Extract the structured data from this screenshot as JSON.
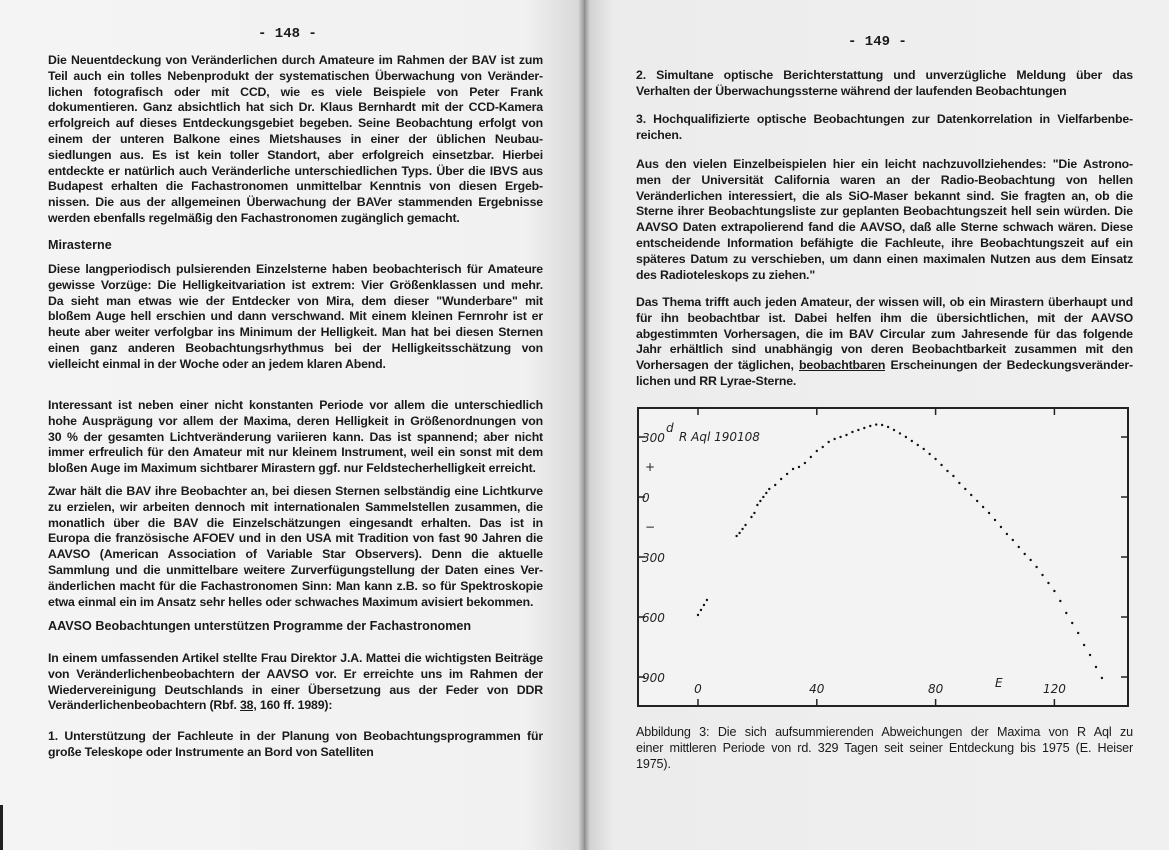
{
  "left_page": {
    "page_number": "- 148 -",
    "paragraphs": [
      [
        "Die Neuentdeckung von Veränderlichen durch Amateure im Rahmen der BAV ist zum",
        "Teil auch ein tolles Nebenprodukt der systematischen Überwachung von Veränder-",
        "lichen fotografisch oder mit CCD, wie es viele Beispiele von Peter Frank",
        "dokumentieren. Ganz absichtlich hat sich Dr. Klaus Bernhardt mit der CCD-Kamera",
        "erfolgreich auf dieses Entdeckungsgebiet begeben. Seine Beobachtung erfolgt von",
        "einem der unteren Balkone eines Mietshauses in einer der üblichen Neubau-",
        "siedlungen aus. Es ist kein toller Standort, aber erfolgreich einsetzbar. Hierbei",
        "entdeckte er natürlich auch Veränderliche unterschiedlichen Typs. Über die IBVS aus",
        "Budapest erhalten die Fachastronomen unmittelbar Kenntnis von diesen Ergeb-",
        "nissen. Die aus der allgemeinen Überwachung der BAVer stammenden Ergebnisse",
        "werden ebenfalls regelmäßig den Fachastronomen zugänglich gemacht."
      ],
      [
        "Diese langperiodisch pulsierenden Einzelsterne haben beobachterisch für Amateure",
        "gewisse Vorzüge: Die Helligkeitvariation ist extrem: Vier Größenklassen und mehr.",
        "Da sieht man etwas wie der Entdecker von Mira, dem dieser \"Wunderbare\" mit",
        "bloßem Auge hell erschien und dann verschwand. Mit einem kleinen Fernrohr ist er",
        "heute aber weiter verfolgbar ins Minimum der Helligkeit. Man hat bei diesen Sternen",
        "einen ganz anderen Beobachtungsrhythmus bei der Helligkeitsschätzung von",
        "vielleicht einmal in der Woche oder an jedem klaren Abend."
      ],
      [
        "Interessant ist neben einer nicht konstanten Periode vor allem die unterschiedlich",
        "hohe Ausprägung vor allem der Maxima, deren Helligkeit in Größenordnungen von",
        "30 % der gesamten Lichtveränderung variieren kann. Das ist spannend; aber nicht",
        "immer erfreulich für den Amateur mit nur kleinem Instrument, weil ein sonst mit dem",
        "bloßen Auge im Maximum sichtbarer Mirastern ggf. nur Feldstecherhelligkeit erreicht."
      ],
      [
        "Zwar hält die BAV ihre Beobachter an, bei diesen Sternen selbständig eine Lichtkurve",
        "zu erzielen, wir arbeiten dennoch mit internationalen Sammelstellen zusammen, die",
        "monatlich über die BAV die Einzelschätzungen eingesandt erhalten. Das ist in",
        "Europa die französische AFOEV und in den USA mit Tradition von fast 90 Jahren die",
        "AAVSO (American Association of Variable Star Observers). Denn die aktuelle",
        "Sammlung und die unmittelbare weitere Zurverfügungstellung der Daten eines Ver-",
        "änderlichen macht für die Fachastronomen Sinn: Man kann z.B. so für Spektroskopie",
        "etwa einmal ein im Ansatz sehr helles oder schwaches Maximum avisiert bekommen."
      ],
      [
        "In einem umfassenden Artikel stellte Frau Direktor J.A. Mattei die wichtigsten Beiträge",
        "von Veränderlichenbeobachtern der AAVSO vor. Er erreichte uns im Rahmen der",
        "Wiedervereinigung Deutschlands in einer Übersetzung aus der Feder von DDR",
        "Veränderlichenbeobachtern (Rbf. 38, 160 ff. 1989):"
      ],
      [
        "1. Unterstützung der Fachleute in der Planung von Beobachtungsprogrammen für",
        "große Teleskope oder Instrumente an Bord von Satelliten"
      ]
    ],
    "heading_mirasterne": "Mirasterne",
    "heading_aavso": "AAVSO Beobachtungen unterstützen Programme der Fachastronomen"
  },
  "right_page": {
    "page_number": "- 149 -",
    "paragraphs": [
      [
        "2. Simultane optische Berichterstattung und unverzügliche Meldung über das",
        "Verhalten der Überwachungssterne während der laufenden Beobachtungen"
      ],
      [
        "3. Hochqualifizierte optische Beobachtungen zur Datenkorrelation in Vielfarbenbe-",
        "reichen."
      ],
      [
        "Aus den vielen Einzelbeispielen hier ein leicht nachzuvollziehendes: \"Die Astrono-",
        "men der Universität California waren an der Radio-Beobachtung von hellen",
        "Veränderlichen interessiert, die als SiO-Maser bekannt sind. Sie fragten an, ob die",
        "Sterne ihrer Beobachtungsliste zur geplanten Beobachtungszeit hell sein würden. Die",
        "AAVSO Daten extrapolierend fand die AAVSO, daß alle Sterne schwach wären. Diese",
        "entscheidende Information befähigte die Fachleute, ihre Beobachtungszeit auf ein",
        "späteres Datum zu verschieben, um dann einen maximalen Nutzen aus dem Einsatz",
        "des Radioteleskops zu ziehen.\""
      ],
      [
        "Das Thema trifft auch jeden Amateur, der wissen will, ob ein Mirastern überhaupt und",
        "für ihn beobachtbar ist. Dabei helfen ihm die übersichtlichen, mit der AAVSO",
        "abgestimmten Vorhersagen, die im BAV Circular zum Jahresende für das folgende",
        "Jahr erhältlich sind unabhängig von deren Beobachtbarkeit zusammen mit den",
        "Vorhersagen der täglichen, beobachtbaren Erscheinungen der Bedeckungsveränder-",
        "lichen und RR Lyrae-Sterne."
      ]
    ],
    "caption": [
      "Abbildung 3: Die sich aufsummierenden Abweichungen der Maxima von R Aql zu",
      "einer mittleren Periode von rd. 329 Tagen seit seiner Entdeckung bis 1975 (E. Heiser",
      "1975)."
    ]
  },
  "chart_data": {
    "type": "scatter",
    "label": "R Aql 190108",
    "xlabel": "E",
    "y_unit": "d",
    "y_sign_plus": "+",
    "y_sign_minus": "−",
    "xlim": [
      -20,
      145
    ],
    "ylim": [
      -1000,
      420
    ],
    "x_ticks": [
      0,
      40,
      80,
      120
    ],
    "x_tick_labels": [
      "0",
      "40",
      "80",
      "120"
    ],
    "y_ticks": [
      300,
      0,
      -300,
      -600,
      -900
    ],
    "y_tick_labels": [
      "300",
      "0",
      "300",
      "600",
      "900"
    ],
    "points": [
      [
        0,
        -590
      ],
      [
        1,
        -565
      ],
      [
        2,
        -540
      ],
      [
        3,
        -515
      ],
      [
        13,
        -195
      ],
      [
        14,
        -180
      ],
      [
        15,
        -160
      ],
      [
        16,
        -140
      ],
      [
        18,
        -100
      ],
      [
        19,
        -80
      ],
      [
        20,
        -40
      ],
      [
        21,
        -20
      ],
      [
        22,
        0
      ],
      [
        23,
        20
      ],
      [
        24,
        40
      ],
      [
        26,
        60
      ],
      [
        28,
        90
      ],
      [
        30,
        115
      ],
      [
        32,
        140
      ],
      [
        34,
        150
      ],
      [
        36,
        170
      ],
      [
        38,
        200
      ],
      [
        40,
        230
      ],
      [
        42,
        250
      ],
      [
        44,
        275
      ],
      [
        46,
        290
      ],
      [
        48,
        300
      ],
      [
        50,
        310
      ],
      [
        52,
        325
      ],
      [
        54,
        335
      ],
      [
        56,
        345
      ],
      [
        58,
        355
      ],
      [
        60,
        362
      ],
      [
        62,
        360
      ],
      [
        64,
        350
      ],
      [
        66,
        335
      ],
      [
        68,
        318
      ],
      [
        70,
        300
      ],
      [
        72,
        280
      ],
      [
        74,
        260
      ],
      [
        76,
        240
      ],
      [
        78,
        215
      ],
      [
        80,
        190
      ],
      [
        82,
        160
      ],
      [
        84,
        130
      ],
      [
        86,
        105
      ],
      [
        88,
        70
      ],
      [
        90,
        40
      ],
      [
        92,
        10
      ],
      [
        94,
        -20
      ],
      [
        96,
        -50
      ],
      [
        98,
        -80
      ],
      [
        100,
        -115
      ],
      [
        102,
        -150
      ],
      [
        104,
        -185
      ],
      [
        106,
        -215
      ],
      [
        108,
        -250
      ],
      [
        110,
        -285
      ],
      [
        112,
        -315
      ],
      [
        114,
        -350
      ],
      [
        116,
        -390
      ],
      [
        118,
        -430
      ],
      [
        120,
        -470
      ],
      [
        122,
        -520
      ],
      [
        124,
        -580
      ],
      [
        126,
        -630
      ],
      [
        128,
        -680
      ],
      [
        130,
        -740
      ],
      [
        132,
        -790
      ],
      [
        134,
        -850
      ],
      [
        136,
        -905
      ]
    ]
  }
}
